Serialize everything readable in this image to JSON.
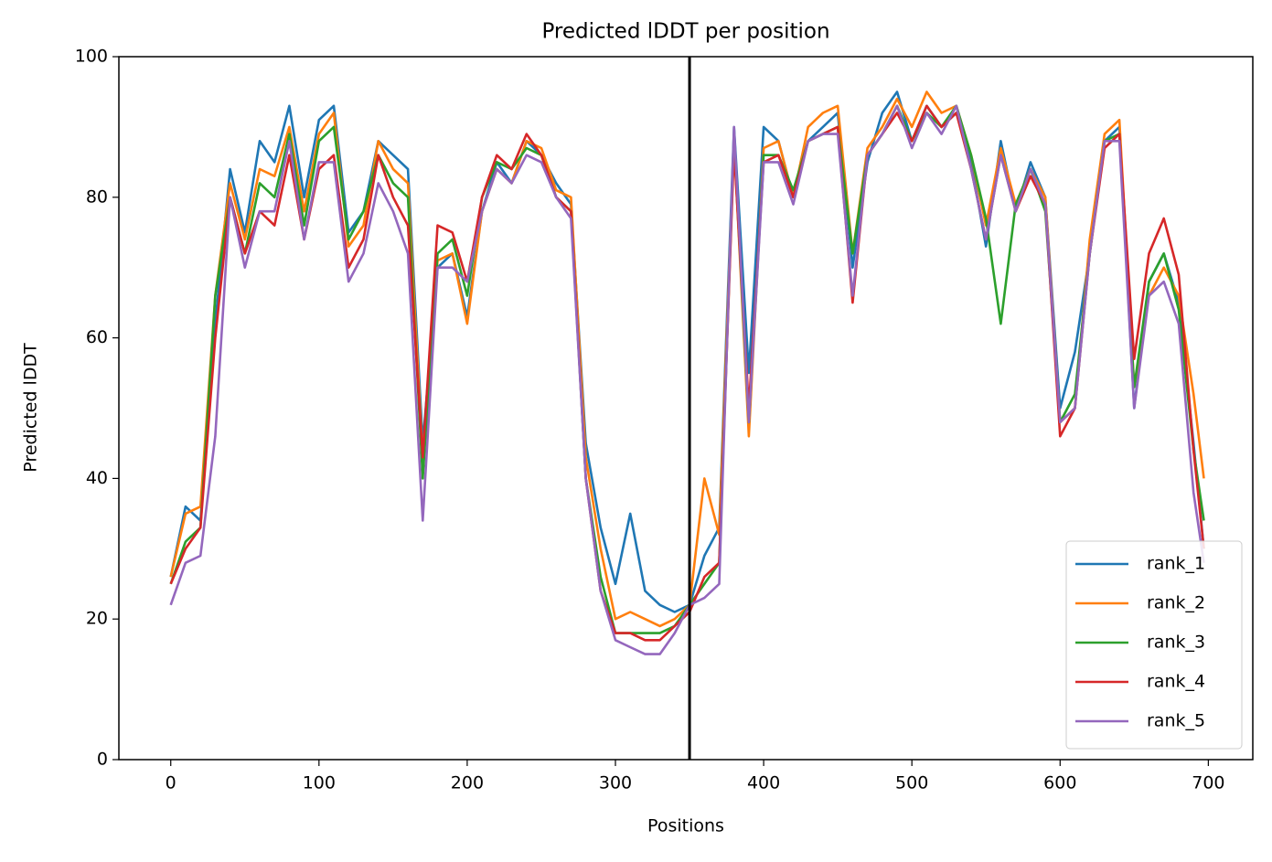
{
  "chart_data": {
    "type": "line",
    "title": "Predicted lDDT per position",
    "xlabel": "Positions",
    "ylabel": "Predicted lDDT",
    "x": [
      0,
      10,
      20,
      30,
      40,
      50,
      60,
      70,
      80,
      90,
      100,
      110,
      120,
      130,
      140,
      150,
      160,
      170,
      180,
      190,
      200,
      210,
      220,
      230,
      240,
      250,
      260,
      270,
      280,
      290,
      300,
      310,
      320,
      330,
      340,
      350,
      360,
      370,
      380,
      390,
      400,
      410,
      420,
      430,
      440,
      450,
      460,
      470,
      480,
      490,
      500,
      510,
      520,
      530,
      540,
      550,
      560,
      570,
      580,
      590,
      600,
      610,
      620,
      630,
      640,
      650,
      660,
      670,
      680,
      690,
      697
    ],
    "series": [
      {
        "name": "rank_1",
        "color": "#1f77b4",
        "values": [
          26,
          36,
          34,
          62,
          84,
          75,
          88,
          85,
          93,
          80,
          91,
          93,
          75,
          78,
          88,
          86,
          84,
          45,
          70,
          72,
          63,
          78,
          85,
          82,
          88,
          86,
          82,
          79,
          45,
          33,
          25,
          35,
          24,
          22,
          21,
          22,
          29,
          33,
          90,
          55,
          90,
          88,
          80,
          88,
          90,
          92,
          70,
          85,
          92,
          95,
          88,
          93,
          90,
          92,
          85,
          73,
          88,
          78,
          85,
          80,
          50,
          58,
          72,
          88,
          90,
          50,
          68,
          72,
          65,
          45,
          30
        ]
      },
      {
        "name": "rank_2",
        "color": "#ff7f0e",
        "values": [
          26,
          35,
          36,
          66,
          82,
          74,
          84,
          83,
          90,
          78,
          89,
          92,
          73,
          76,
          88,
          84,
          82,
          43,
          71,
          72,
          62,
          78,
          84,
          82,
          88,
          87,
          81,
          80,
          43,
          30,
          20,
          21,
          20,
          19,
          20,
          22,
          40,
          32,
          88,
          46,
          87,
          88,
          80,
          90,
          92,
          93,
          72,
          87,
          90,
          94,
          90,
          95,
          92,
          93,
          86,
          76,
          87,
          79,
          84,
          80,
          48,
          50,
          74,
          89,
          91,
          53,
          66,
          70,
          66,
          52,
          40
        ]
      },
      {
        "name": "rank_3",
        "color": "#2ca02c",
        "values": [
          25,
          31,
          33,
          66,
          80,
          72,
          82,
          80,
          89,
          76,
          88,
          90,
          74,
          78,
          86,
          82,
          80,
          40,
          72,
          74,
          66,
          80,
          85,
          84,
          87,
          86,
          80,
          78,
          40,
          26,
          18,
          18,
          18,
          18,
          19,
          22,
          25,
          28,
          88,
          48,
          86,
          86,
          81,
          88,
          89,
          90,
          72,
          86,
          89,
          93,
          88,
          92,
          90,
          93,
          86,
          77,
          62,
          79,
          84,
          78,
          48,
          52,
          72,
          88,
          89,
          53,
          68,
          72,
          64,
          44,
          34
        ]
      },
      {
        "name": "rank_4",
        "color": "#d62728",
        "values": [
          25,
          30,
          33,
          60,
          80,
          72,
          78,
          76,
          86,
          74,
          84,
          86,
          70,
          74,
          86,
          80,
          76,
          43,
          76,
          75,
          68,
          80,
          86,
          84,
          89,
          86,
          80,
          78,
          40,
          24,
          18,
          18,
          17,
          17,
          19,
          21,
          26,
          28,
          87,
          50,
          85,
          86,
          80,
          88,
          89,
          90,
          65,
          86,
          89,
          92,
          88,
          93,
          90,
          92,
          84,
          74,
          86,
          78,
          83,
          79,
          46,
          50,
          72,
          87,
          89,
          57,
          72,
          77,
          69,
          44,
          30
        ]
      },
      {
        "name": "rank_5",
        "color": "#9467bd",
        "values": [
          22,
          28,
          29,
          46,
          80,
          70,
          78,
          78,
          88,
          74,
          85,
          85,
          68,
          72,
          82,
          78,
          72,
          34,
          70,
          70,
          68,
          78,
          84,
          82,
          86,
          85,
          80,
          77,
          40,
          24,
          17,
          16,
          15,
          15,
          18,
          22,
          23,
          25,
          90,
          48,
          85,
          85,
          79,
          88,
          89,
          89,
          66,
          86,
          89,
          93,
          87,
          92,
          89,
          93,
          84,
          74,
          86,
          78,
          84,
          79,
          48,
          50,
          72,
          88,
          88,
          50,
          66,
          68,
          62,
          38,
          28
        ]
      }
    ],
    "vline": 350,
    "vline_color": "#000000",
    "xlim": [
      -35,
      730
    ],
    "ylim": [
      0,
      100
    ],
    "xticks": [
      0,
      100,
      200,
      300,
      400,
      500,
      600,
      700
    ],
    "yticks": [
      0,
      20,
      40,
      60,
      80,
      100
    ],
    "legend": "lower right"
  }
}
